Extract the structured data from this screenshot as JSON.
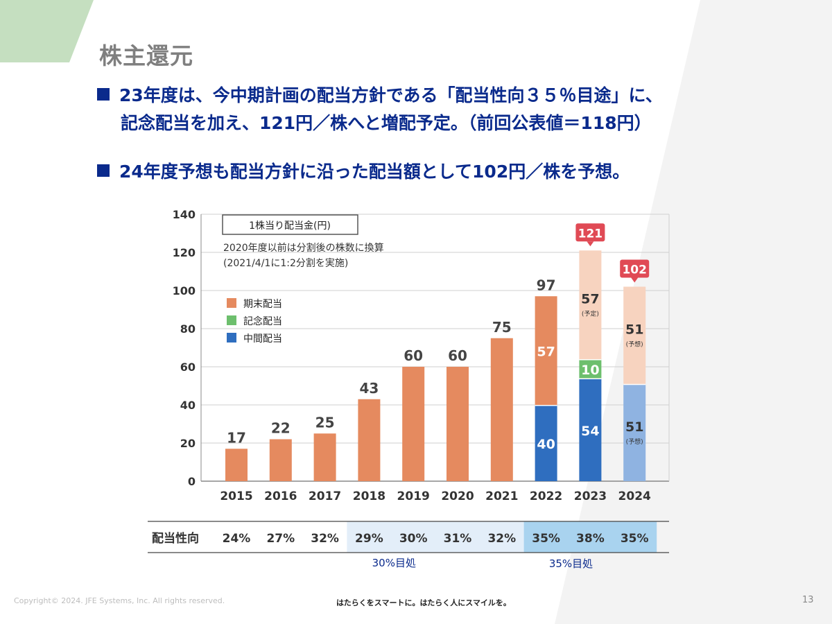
{
  "slide": {
    "title": "株主還元",
    "bullet1_line1": "23年度は、今中期計画の配当方針である「配当性向３５％目途」に、",
    "bullet1_line2": "記念配当を加え、121円／株へと増配予定。（前回公表値＝118円）",
    "bullet2": "24年度予想も配当方針に沿った配当額として102円／株を予想。",
    "page_number": "13"
  },
  "footer": {
    "copyright": "Copyright© 2024. JFE Systems, Inc. All rights reserved.",
    "tagline": "はたらくをスマートに。はたらく人にスマイルを。"
  },
  "colors": {
    "bg_green": "#c5dfc0",
    "year_end": "#e58a5f",
    "year_end_forecast": "#f7d3bf",
    "commemorative": "#6dbf6d",
    "interim": "#2f6ebf",
    "interim_forecast": "#8fb3e1",
    "callout": "#e04a55",
    "navy": "#0a2a8c",
    "band_light": "#e3eef9",
    "band_dark": "#a9d3ef"
  },
  "chart_data": {
    "type": "bar",
    "stacked": true,
    "title": "1株当り配当金(円)",
    "note_line1": "2020年度以前は分割後の株数に換算",
    "note_line2": "(2021/4/1に1:2分割を実施)",
    "categories": [
      "2015",
      "2016",
      "2017",
      "2018",
      "2019",
      "2020",
      "2021",
      "2022",
      "2023",
      "2024"
    ],
    "ylim": [
      0,
      140
    ],
    "yticks": [
      0,
      20,
      40,
      60,
      80,
      100,
      120,
      140
    ],
    "grid": true,
    "legend": [
      "期末配当",
      "記念配当",
      "中間配当"
    ],
    "series": [
      {
        "name": "中間配当",
        "values": [
          0,
          0,
          0,
          0,
          0,
          0,
          0,
          40,
          54,
          51
        ],
        "labels": [
          "",
          "",
          "",
          "",
          "",
          "",
          "",
          "40",
          "54",
          "51"
        ],
        "notes": [
          "",
          "",
          "",
          "",
          "",
          "",
          "",
          "",
          "",
          "(予想)"
        ]
      },
      {
        "name": "記念配当",
        "values": [
          0,
          0,
          0,
          0,
          0,
          0,
          0,
          0,
          10,
          0
        ],
        "labels": [
          "",
          "",
          "",
          "",
          "",
          "",
          "",
          "",
          "10",
          ""
        ],
        "notes": [
          "",
          "",
          "",
          "",
          "",
          "",
          "",
          "",
          "",
          ""
        ]
      },
      {
        "name": "期末配当",
        "values": [
          17,
          22,
          25,
          43,
          60,
          60,
          75,
          57,
          57,
          51
        ],
        "labels": [
          "",
          "",
          "",
          "",
          "",
          "",
          "",
          "57",
          "57",
          "51"
        ],
        "notes": [
          "",
          "",
          "",
          "",
          "",
          "",
          "",
          "",
          "(予定)",
          "(予想)"
        ]
      }
    ],
    "totals": [
      "17",
      "22",
      "25",
      "43",
      "60",
      "60",
      "75",
      "97",
      "121",
      "102"
    ],
    "callout_years": [
      "2023",
      "2024"
    ],
    "payout": {
      "label": "配当性向",
      "values": [
        "24%",
        "27%",
        "32%",
        "29%",
        "30%",
        "31%",
        "32%",
        "35%",
        "38%",
        "35%"
      ],
      "band1_label": "30%目処",
      "band2_label": "35%目処"
    }
  }
}
